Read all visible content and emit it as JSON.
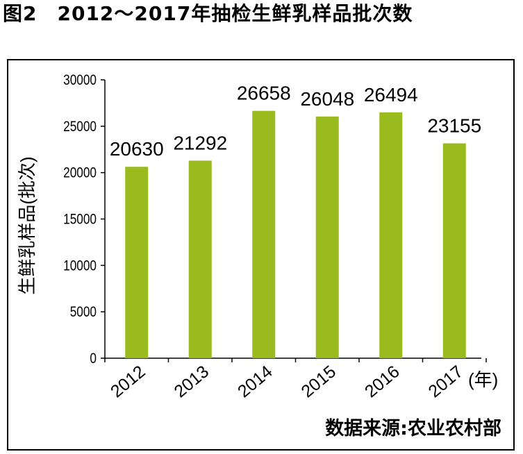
{
  "figure": {
    "title": "图2　2012～2017年抽检生鲜乳样品批次数"
  },
  "chart_data": {
    "type": "bar",
    "categories": [
      "2012",
      "2013",
      "2014",
      "2015",
      "2016",
      "2017"
    ],
    "values": [
      20630,
      21292,
      26658,
      26048,
      26494,
      23155
    ],
    "data_labels": [
      "20630",
      "21292",
      "26658",
      "26048",
      "26494",
      "23155"
    ],
    "ylabel": "生鲜乳样品(批次)",
    "xlabel": "(年)",
    "ylim": [
      0,
      30000
    ],
    "yticks": [
      0,
      5000,
      10000,
      15000,
      20000,
      25000,
      30000
    ],
    "ytick_labels": [
      "0",
      "5000",
      "10000",
      "15000",
      "20000",
      "25000",
      "30000"
    ],
    "grid": false,
    "legend": "none",
    "bar_color": "#9abb1d",
    "source": "数据来源:农业农村部"
  }
}
